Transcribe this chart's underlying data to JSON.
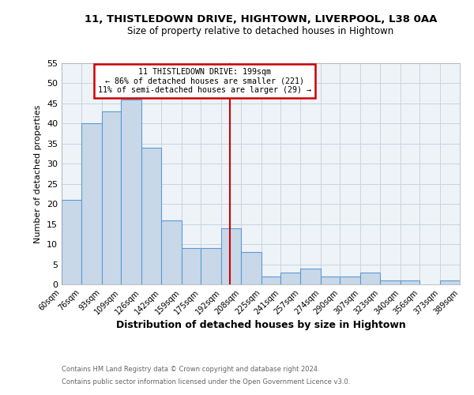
{
  "title1": "11, THISTLEDOWN DRIVE, HIGHTOWN, LIVERPOOL, L38 0AA",
  "title2": "Size of property relative to detached houses in Hightown",
  "xlabel": "Distribution of detached houses by size in Hightown",
  "ylabel": "Number of detached properties",
  "bin_labels": [
    "60sqm",
    "76sqm",
    "93sqm",
    "109sqm",
    "126sqm",
    "142sqm",
    "159sqm",
    "175sqm",
    "192sqm",
    "208sqm",
    "225sqm",
    "241sqm",
    "257sqm",
    "274sqm",
    "290sqm",
    "307sqm",
    "323sqm",
    "340sqm",
    "356sqm",
    "373sqm",
    "389sqm"
  ],
  "bar_values": [
    21,
    40,
    43,
    46,
    34,
    16,
    9,
    9,
    14,
    8,
    2,
    3,
    4,
    2,
    2,
    3,
    1,
    1,
    0,
    1
  ],
  "bin_edges": [
    60,
    76,
    93,
    109,
    126,
    142,
    159,
    175,
    192,
    208,
    225,
    241,
    257,
    274,
    290,
    307,
    323,
    340,
    356,
    373,
    389
  ],
  "property_value": 199,
  "bar_fill_color": "#c8d8e8",
  "bar_edge_color": "#5b9bd5",
  "vline_color": "#cc0000",
  "vline_x": 199,
  "annotation_line1": "11 THISTLEDOWN DRIVE: 199sqm",
  "annotation_line2": "← 86% of detached houses are smaller (221)",
  "annotation_line3": "11% of semi-detached houses are larger (29) →",
  "annotation_box_color": "#cc0000",
  "grid_color": "#c8d4e0",
  "background_color": "#eef3f8",
  "ylim": [
    0,
    55
  ],
  "yticks": [
    0,
    5,
    10,
    15,
    20,
    25,
    30,
    35,
    40,
    45,
    50,
    55
  ],
  "footer1": "Contains HM Land Registry data © Crown copyright and database right 2024.",
  "footer2": "Contains public sector information licensed under the Open Government Licence v3.0."
}
